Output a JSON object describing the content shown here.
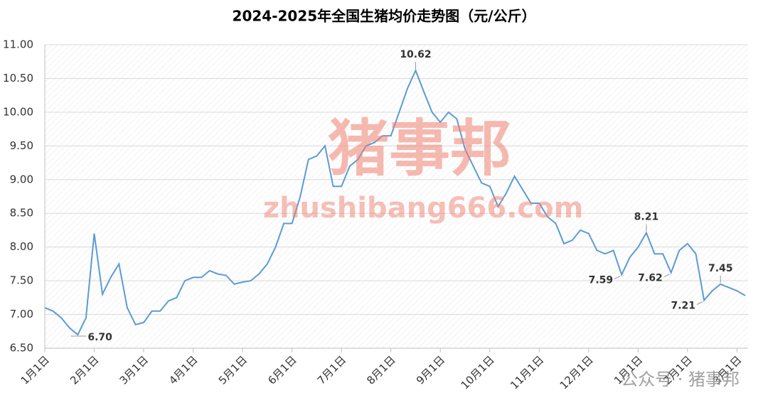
{
  "chart_data": {
    "type": "line",
    "title": "2024-2025年全国生猪均价走势图（元/公斤）",
    "categories": [
      "1月1日",
      null,
      null,
      null,
      null,
      null,
      "2月1日",
      null,
      null,
      null,
      null,
      null,
      "3月1日",
      null,
      null,
      null,
      null,
      null,
      "4月1日",
      null,
      null,
      null,
      null,
      null,
      "5月1日",
      null,
      null,
      null,
      null,
      null,
      "6月1日",
      null,
      null,
      null,
      null,
      null,
      "7月1日",
      null,
      null,
      null,
      null,
      null,
      "8月1日",
      null,
      null,
      null,
      null,
      null,
      "9月1日",
      null,
      null,
      null,
      null,
      null,
      "10月1日",
      null,
      null,
      null,
      null,
      null,
      "11月1日",
      null,
      null,
      null,
      null,
      null,
      "12月1日",
      null,
      null,
      null,
      null,
      null,
      "1月1日",
      null,
      null,
      null,
      null,
      null,
      "2月1日",
      null,
      null,
      null,
      null,
      null,
      "3月1日",
      null
    ],
    "values": [
      7.1,
      7.05,
      6.95,
      6.8,
      6.7,
      6.95,
      8.2,
      7.3,
      7.55,
      7.75,
      7.1,
      6.85,
      6.88,
      7.05,
      7.05,
      7.2,
      7.25,
      7.5,
      7.55,
      7.55,
      7.65,
      7.6,
      7.58,
      7.45,
      7.48,
      7.5,
      7.6,
      7.75,
      8.0,
      8.35,
      8.35,
      8.75,
      9.3,
      9.35,
      9.5,
      8.9,
      8.9,
      9.2,
      9.3,
      9.5,
      9.55,
      9.65,
      9.65,
      10.0,
      10.35,
      10.62,
      10.3,
      10.0,
      9.85,
      10.0,
      9.9,
      9.45,
      9.2,
      8.95,
      8.9,
      8.6,
      8.8,
      9.05,
      8.85,
      8.65,
      8.65,
      8.45,
      8.35,
      8.05,
      8.1,
      8.25,
      8.2,
      7.95,
      7.9,
      7.95,
      7.59,
      7.85,
      8.0,
      8.21,
      7.9,
      7.9,
      7.62,
      7.95,
      8.05,
      7.9,
      7.21,
      7.35,
      7.45,
      7.4,
      7.35,
      7.28
    ],
    "value_labels": [
      null,
      null,
      null,
      null,
      "6.70",
      null,
      null,
      null,
      null,
      null,
      null,
      null,
      null,
      null,
      null,
      null,
      null,
      null,
      null,
      null,
      null,
      null,
      null,
      null,
      null,
      null,
      null,
      null,
      null,
      null,
      null,
      null,
      null,
      null,
      null,
      null,
      null,
      null,
      null,
      null,
      null,
      null,
      null,
      null,
      null,
      "10.62",
      null,
      null,
      null,
      null,
      null,
      null,
      null,
      null,
      null,
      null,
      null,
      null,
      null,
      null,
      null,
      null,
      null,
      null,
      null,
      null,
      null,
      null,
      null,
      null,
      "7.59",
      null,
      null,
      "8.21",
      null,
      null,
      "7.62",
      null,
      null,
      null,
      "7.21",
      null,
      "7.45",
      null,
      null,
      null
    ],
    "color": "#5b9bd5",
    "ylim": [
      6.5,
      11.0
    ],
    "yticks": [
      {
        "value": 6.5,
        "label": "6.50"
      },
      {
        "value": 7.0,
        "label": "7.00"
      },
      {
        "value": 7.5,
        "label": "7.50"
      },
      {
        "value": 8.0,
        "label": "8.00"
      },
      {
        "value": 8.5,
        "label": "8.50"
      },
      {
        "value": 9.0,
        "label": "9.00"
      },
      {
        "value": 9.5,
        "label": "9.50"
      },
      {
        "value": 10.0,
        "label": "10.00"
      },
      {
        "value": 10.5,
        "label": "10.50"
      },
      {
        "value": 11.0,
        "label": "11.00"
      }
    ],
    "grid": true,
    "watermarks": [
      "猪事邦",
      "zhushibang666.com",
      "公众号 · 猪事邦"
    ]
  }
}
